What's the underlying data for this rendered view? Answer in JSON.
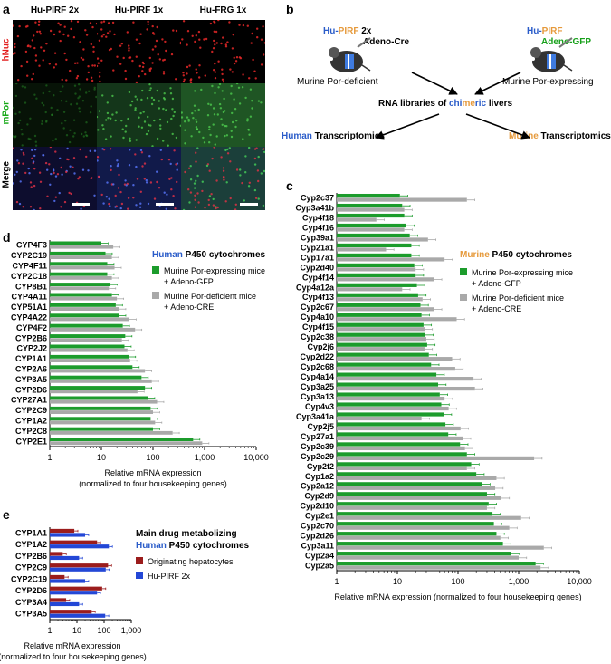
{
  "panels": {
    "a": "a",
    "b": "b",
    "c": "c",
    "d": "d",
    "e": "e"
  },
  "micrograph": {
    "columns": [
      "Hu-PIRF 2x",
      "Hu-PIRF 1x",
      "Hu-FRG 1x"
    ],
    "rows": [
      {
        "label": "hNuc",
        "color": "#e11c1c"
      },
      {
        "label": "mPor",
        "color": "#15a815"
      },
      {
        "label": "Merge",
        "color": "#000000"
      }
    ]
  },
  "schematic": {
    "left_mouse": {
      "hu": "Hu-",
      "pirf": "PIRF",
      "dose": " 2x",
      "virus": "Adeno-Cre",
      "caption": "Murine Por-deficient"
    },
    "right_mouse": {
      "hu": "Hu-",
      "pirf": "PIRF",
      "virus": "Adeno-GFP",
      "caption": "Murine Por-expressing"
    },
    "center": {
      "pre": "RNA libraries of ",
      "chi": "chi",
      "me": "me",
      "ric": "ric",
      "post": " livers"
    },
    "left_out": {
      "species": "Human",
      "rest": " Transcriptomics"
    },
    "right_out": {
      "species": "Murine",
      "rest": " Transcriptomics"
    },
    "colors": {
      "human": "#2a5cc9",
      "murine": "#e69a3c",
      "green": "#17a01a"
    }
  },
  "chart_data": [
    {
      "panel": "c",
      "type": "bar",
      "orientation": "horizontal",
      "scale": "log",
      "xlim": [
        1,
        10000
      ],
      "ticks": [
        "1",
        "10",
        "100",
        "1,000",
        "10,000"
      ],
      "xlabel": "Relative mRNA expression (normalized to four housekeeping genes)",
      "legend_title_species": "Murine",
      "legend_title_rest": " P450 cytochromes",
      "categories": [
        "Cyp2c37",
        "Cyp3a41b",
        "Cyp4f18",
        "Cyp4f16",
        "Cyp39a1",
        "Cyp21a1",
        "Cyp17a1",
        "Cyp2d40",
        "Cyp4f14",
        "Cyp4a12a",
        "Cyp4f13",
        "Cyp2c67",
        "Cyp4a10",
        "Cyp4f15",
        "Cyp2c38",
        "Cyp2j6",
        "Cyp2d22",
        "Cyp2c68",
        "Cyp4a14",
        "Cyp3a25",
        "Cyp3a13",
        "Cyp4v3",
        "Cyp3a41a",
        "Cyp2j5",
        "Cyp27a1",
        "Cyp2c39",
        "Cyp2c29",
        "Cyp2f2",
        "Cyp1a2",
        "Cyp2a12",
        "Cyp2d9",
        "Cyp2d10",
        "Cyp2e1",
        "Cyp2c70",
        "Cyp2d26",
        "Cyp3a11",
        "Cyp2a4",
        "Cyp2a5"
      ],
      "series": [
        {
          "name": "Murine Por-expressing mice\n+ Adeno-GFP",
          "color": "#1c9c2c",
          "values": [
            11,
            12,
            13,
            14,
            16,
            17,
            17,
            19,
            20,
            21,
            22,
            24,
            25,
            27,
            29,
            31,
            33,
            36,
            44,
            47,
            50,
            53,
            58,
            62,
            69,
            108,
            140,
            165,
            200,
            250,
            300,
            320,
            370,
            390,
            430,
            550,
            750,
            1900
          ]
        },
        {
          "name": "Murine Por-deficient mice\n+ Adeno-CRE",
          "color": "#a9a9a9",
          "values": [
            140,
            13,
            4.5,
            13,
            32,
            6.5,
            60,
            20,
            40,
            12,
            26,
            40,
            95,
            28,
            30,
            28,
            80,
            90,
            180,
            190,
            60,
            70,
            25,
            110,
            120,
            130,
            1800,
            140,
            430,
            410,
            520,
            300,
            1100,
            700,
            500,
            2600,
            1000,
            2300
          ]
        }
      ]
    },
    {
      "panel": "d",
      "type": "bar",
      "orientation": "horizontal",
      "scale": "log",
      "xlim": [
        1,
        10000
      ],
      "ticks": [
        "1",
        "10",
        "100",
        "1,000",
        "10,000"
      ],
      "xlabel_line1": "Relative mRNA expression",
      "xlabel_line2": "(normalized to four housekeeping genes)",
      "legend_title_species": "Human",
      "legend_title_rest": " P450 cytochromes",
      "categories": [
        "CYP4F3",
        "CYP2C19",
        "CYP4F11",
        "CYP2C18",
        "CYP8B1",
        "CYP4A11",
        "CYP51A1",
        "CYP4A22",
        "CYP4F2",
        "CYP2B6",
        "CYP2J2",
        "CYP1A1",
        "CYP2A6",
        "CYP3A5",
        "CYP2D6",
        "CYP27A1",
        "CYP2C9",
        "CYP1A2",
        "CYP2C8",
        "CYP2E1"
      ],
      "series": [
        {
          "name": "Murine Por-expressing mice\n+ Adeno-GFP",
          "color": "#1c9c2c",
          "values": [
            10,
            12,
            13,
            13,
            15,
            16,
            19,
            22,
            26,
            29,
            28,
            34,
            40,
            60,
            70,
            80,
            90,
            90,
            100,
            600
          ]
        },
        {
          "name": "Murine Por-deficient mice\n+ Adeno-CRE",
          "color": "#a9a9a9",
          "values": [
            17,
            16,
            18,
            16,
            14,
            20,
            22,
            35,
            45,
            25,
            32,
            36,
            70,
            95,
            50,
            120,
            100,
            110,
            240,
            900
          ]
        }
      ]
    },
    {
      "panel": "e",
      "type": "bar",
      "orientation": "horizontal",
      "scale": "log",
      "xlim": [
        1,
        1000
      ],
      "ticks": [
        "1",
        "10",
        "100",
        "1,000"
      ],
      "xlabel_line1": "Relative mRNA expression",
      "xlabel_line2": "(normalized to four housekeeping genes)",
      "legend_title_line1": "Main drug metabolizing",
      "legend_title_species": "Human",
      "legend_title_rest": " P450 cytochromes",
      "categories": [
        "CYP1A1",
        "CYP1A2",
        "CYP2B6",
        "CYP2C9",
        "CYP2C19",
        "CYP2D6",
        "CYP3A4",
        "CYP3A5"
      ],
      "series": [
        {
          "name": "Originating hepatocytes",
          "color": "#9b1c1c",
          "values": [
            8,
            55,
            3,
            140,
            3.5,
            85,
            4,
            35
          ]
        },
        {
          "name": "Hu-PIRF 2x",
          "color": "#2347d6",
          "values": [
            20,
            150,
            12,
            115,
            20,
            55,
            12,
            110
          ]
        }
      ]
    }
  ]
}
